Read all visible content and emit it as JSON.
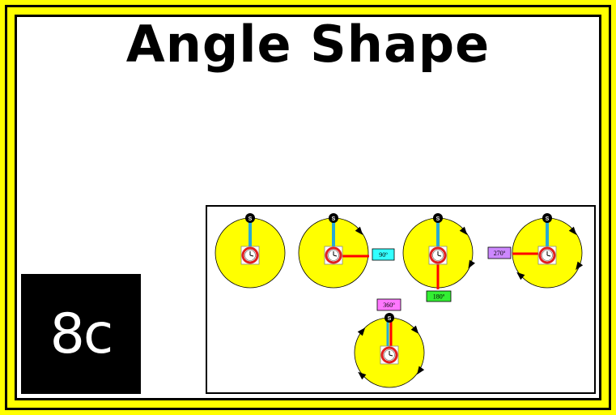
{
  "title": "Angle Shape",
  "badge": "8c",
  "diagram": {
    "start_marker": "S",
    "angle_labels": [
      "90º",
      "180º",
      "270º",
      "360º"
    ],
    "colors": {
      "circle": "#ffff00",
      "start_line": "#27a9d6",
      "angle_line": "#ff0000",
      "label_90": "#33ffff",
      "label_180": "#33ee33",
      "label_270": "#cc88ff",
      "label_360": "#ff77ff"
    },
    "icons": [
      "clock-icon",
      "arrow-icon",
      "start-marker-icon"
    ]
  }
}
